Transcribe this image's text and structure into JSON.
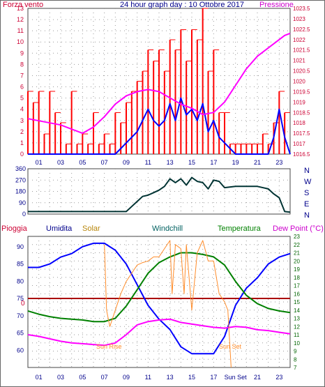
{
  "title": "24 hour graph day : 10 Ottobre 2017",
  "colors": {
    "wind": "#ff0000",
    "wind_alt": "#0000ff",
    "pressure": "#ff00ff",
    "direction": "#003333",
    "humidity": "#0000ff",
    "solar": "#ff8c2a",
    "windchill": "#006060",
    "temperature": "#008000",
    "dew_point": "#ff00ff",
    "rain": "#aa0000",
    "axis_red": "#cc0033",
    "axis_blue": "#00008b",
    "axis_green": "#006400"
  },
  "chart_data": [
    {
      "type": "line",
      "label_left": "Forza vento",
      "label_right": "Pressione",
      "x_ticks": [
        "01",
        "03",
        "05",
        "07",
        "09",
        "11",
        "13",
        "15",
        "17",
        "19",
        "21",
        "23"
      ],
      "x_range": [
        0,
        24
      ],
      "y_left": {
        "range": [
          0,
          13
        ],
        "ticks": [
          "0",
          "1",
          "2",
          "3",
          "4",
          "5",
          "6",
          "7",
          "8",
          "9",
          "10",
          "11",
          "12",
          "13"
        ]
      },
      "y_right": {
        "range": [
          1016.5,
          1023.5
        ],
        "ticks": [
          "1016.5",
          "1017",
          "1017.5",
          "1018",
          "1018.5",
          "1019",
          "1019.5",
          "1020",
          "1020.5",
          "1021",
          "1021.5",
          "1022",
          "1022.5",
          "1023",
          "1023.5"
        ]
      },
      "series": [
        {
          "key": "gust",
          "color": "#ff0000",
          "x": [
            0,
            0.5,
            1,
            1.5,
            2,
            2.5,
            3,
            3.5,
            4,
            4.5,
            5,
            5.5,
            6,
            6.5,
            7,
            7.5,
            8,
            8.5,
            9,
            9.5,
            10,
            10.5,
            11,
            11.5,
            12,
            12.5,
            13,
            13.5,
            14,
            14.5,
            15,
            15.5,
            16,
            16.5,
            17,
            17.5,
            18,
            18.5,
            19,
            19.5,
            20,
            20.5,
            21,
            21.5,
            22,
            22.5,
            23,
            23.5
          ],
          "y": [
            5.6,
            4.6,
            5.6,
            1.8,
            5.6,
            3.7,
            2.8,
            0.9,
            5.6,
            0.9,
            1.8,
            0.9,
            3.7,
            0.9,
            1.8,
            0.9,
            3.7,
            2.8,
            4.6,
            5.6,
            6.5,
            7.4,
            9.3,
            8.3,
            9.3,
            7.4,
            10.2,
            9.3,
            11.1,
            8.3,
            11.1,
            10.2,
            13,
            7.4,
            9.3,
            3.7,
            3.7,
            0.9,
            0.9,
            0.9,
            0.9,
            0.9,
            0.9,
            1.8,
            0.9,
            2.8,
            5.6,
            3.7
          ]
        },
        {
          "key": "wind",
          "color": "#0000ff",
          "x": [
            0,
            1,
            2,
            3,
            4,
            5,
            6,
            7,
            8,
            8.5,
            9,
            9.5,
            10,
            10.5,
            11,
            11.5,
            12,
            12.5,
            13,
            13.5,
            14,
            14.5,
            15,
            15.5,
            16,
            16.5,
            17,
            17.5,
            18,
            19,
            20,
            21,
            22,
            22.5,
            23,
            23.5,
            24
          ],
          "y": [
            0,
            0,
            0,
            0,
            0,
            0,
            0,
            0,
            0,
            0.5,
            1,
            1.5,
            2,
            3,
            4,
            3,
            2.5,
            3,
            4.5,
            3,
            5,
            3.5,
            4,
            3,
            4.5,
            2,
            3,
            1.5,
            1,
            0,
            0,
            0,
            0,
            1.5,
            4,
            1.5,
            0
          ]
        },
        {
          "key": "pressure",
          "color": "#ff00ff",
          "x": [
            0,
            1,
            2,
            3,
            4,
            5,
            6,
            7,
            8,
            9,
            10,
            11,
            12,
            13,
            14,
            15,
            16,
            17,
            18,
            19,
            20,
            21,
            22,
            23,
            23.5,
            24
          ],
          "y": [
            1018.2,
            1018.1,
            1018,
            1017.9,
            1017.7,
            1017.5,
            1017.8,
            1018.3,
            1018.9,
            1019.3,
            1019.5,
            1019.6,
            1019.5,
            1019.2,
            1018.9,
            1018.7,
            1018.4,
            1018.5,
            1019,
            1019.8,
            1020.6,
            1021.2,
            1021.6,
            1022,
            1022.2,
            1022.3
          ]
        }
      ]
    },
    {
      "type": "line",
      "label_right": [
        "N",
        "W",
        "S",
        "E",
        "N"
      ],
      "y_range": [
        0,
        360
      ],
      "y_ticks": [
        "0",
        "90",
        "180",
        "270",
        "360"
      ],
      "x_range": [
        0,
        24
      ],
      "series": [
        {
          "key": "direction",
          "color": "#003333",
          "x": [
            0,
            1,
            2,
            3,
            4,
            5,
            6,
            7,
            8,
            9,
            9.5,
            10,
            10.5,
            11,
            11.5,
            12,
            12.5,
            13,
            13.5,
            14,
            14.5,
            15,
            15.5,
            16,
            16.5,
            17,
            17.5,
            18,
            19,
            20,
            21,
            22,
            22.5,
            23,
            23.5,
            24
          ],
          "y": [
            20,
            20,
            20,
            20,
            20,
            20,
            20,
            20,
            20,
            20,
            60,
            100,
            140,
            150,
            170,
            190,
            220,
            280,
            250,
            280,
            230,
            290,
            260,
            250,
            200,
            270,
            260,
            210,
            220,
            220,
            220,
            200,
            160,
            130,
            20,
            15
          ]
        }
      ]
    },
    {
      "type": "line",
      "labels": {
        "rain": "Pioggia",
        "humidity": "Umidita",
        "solar": "Solar",
        "windchill": "Windchill",
        "temperature": "Temperatura",
        "dew_point": "Dew Point (°C)"
      },
      "annotations": [
        "Sun Rise",
        "Sun Set"
      ],
      "rain_marker": "0",
      "x_ticks": [
        "01",
        "03",
        "05",
        "07",
        "09",
        "11",
        "13",
        "15",
        "17",
        "Sun Set",
        "21",
        "23"
      ],
      "x_range": [
        0,
        24
      ],
      "y_left": {
        "range": [
          55,
          93
        ],
        "ticks": [
          "60",
          "65",
          "70",
          "75",
          "80",
          "85",
          "90"
        ]
      },
      "y_right": {
        "range": [
          7,
          23
        ],
        "ticks": [
          "7",
          "8",
          "9",
          "10",
          "11",
          "12",
          "13",
          "14",
          "15",
          "16",
          "17",
          "18",
          "19",
          "20",
          "21",
          "22",
          "23"
        ]
      },
      "series": [
        {
          "key": "humidity",
          "color": "#0000ff",
          "x": [
            0,
            1,
            2,
            3,
            4,
            5,
            6,
            7,
            8,
            9,
            10,
            11,
            12,
            13,
            14,
            15,
            16,
            17,
            18,
            19,
            20,
            21,
            22,
            23,
            24
          ],
          "y": [
            84,
            84,
            85,
            87,
            88,
            90,
            91,
            91,
            89,
            85,
            79,
            73,
            69,
            66,
            61,
            59,
            59,
            59,
            64,
            73,
            78,
            81,
            85,
            87,
            88
          ]
        },
        {
          "key": "temperature",
          "color": "#008000",
          "x": [
            0,
            1,
            2,
            3,
            4,
            5,
            6,
            7,
            8,
            9,
            10,
            11,
            12,
            13,
            14,
            15,
            16,
            17,
            18,
            19,
            20,
            21,
            22,
            23,
            24
          ],
          "y": [
            13.9,
            13.5,
            13.2,
            13,
            12.9,
            12.8,
            12.6,
            12.6,
            13,
            14.5,
            16.5,
            18.5,
            19.8,
            20.5,
            21,
            21,
            20.8,
            20.5,
            19.5,
            17.5,
            15.8,
            14.8,
            14.2,
            13.9,
            13.7
          ]
        },
        {
          "key": "dew_point",
          "color": "#ff00ff",
          "x": [
            0,
            1,
            2,
            3,
            4,
            5,
            6,
            7,
            8,
            9,
            10,
            11,
            12,
            13,
            14,
            15,
            16,
            17,
            18,
            19,
            20,
            21,
            22,
            23,
            24
          ],
          "y": [
            11,
            10.8,
            10.5,
            10.2,
            10,
            9.9,
            9.8,
            9.7,
            10,
            11,
            12.2,
            12.6,
            12.8,
            12.9,
            12.5,
            12.3,
            12.1,
            11.9,
            11.8,
            12,
            11.9,
            11.6,
            11.5,
            11.3,
            11.1
          ]
        },
        {
          "key": "solar",
          "color": "#ff8c2a",
          "x": [
            7,
            7.2,
            7.5,
            8,
            8.5,
            9,
            9.5,
            10,
            10.5,
            11,
            11.5,
            12,
            12.5,
            13,
            13.2,
            13.5,
            14,
            14.3,
            14.5,
            15,
            15.5,
            16,
            16.5,
            17,
            17.5,
            18,
            18.3,
            18.6
          ],
          "y": [
            22,
            14,
            12,
            14,
            16,
            17.5,
            18.5,
            19.5,
            19.8,
            20,
            20.5,
            20.5,
            21.5,
            22.5,
            16,
            22,
            21.5,
            16,
            22,
            14,
            21,
            22.5,
            20,
            20,
            16,
            15,
            14,
            7
          ]
        }
      ]
    }
  ]
}
